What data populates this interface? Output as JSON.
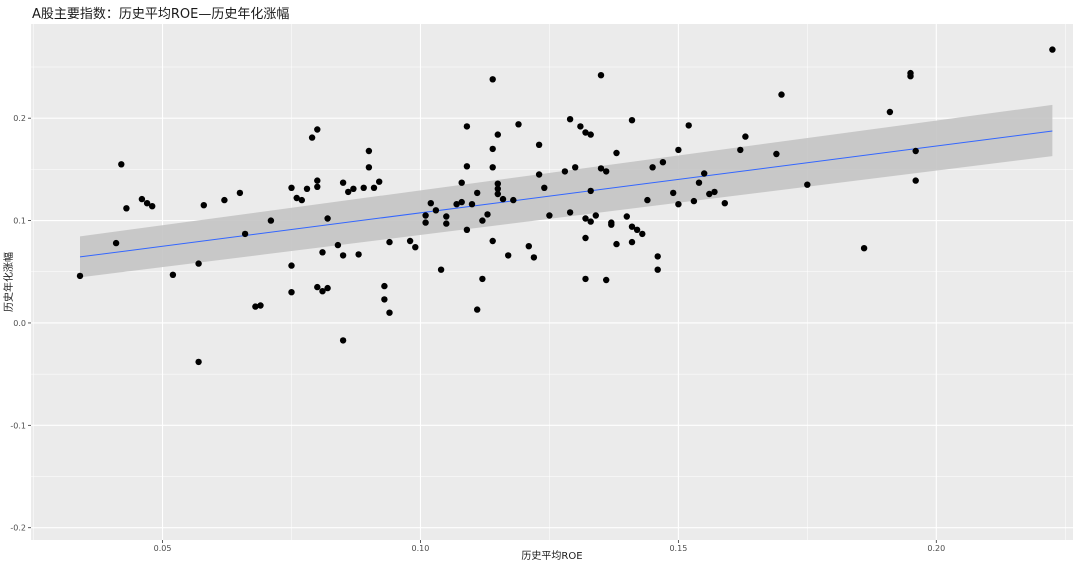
{
  "chart_data": {
    "type": "scatter",
    "title": "A股主要指数：历史平均ROE—历史年化涨幅",
    "xlabel": "历史平均ROE",
    "ylabel": "历史年化涨幅",
    "xlim": [
      0.0245,
      0.2265
    ],
    "ylim": [
      -0.212,
      0.292
    ],
    "x_ticks": [
      0.05,
      0.1,
      0.15,
      0.2
    ],
    "x_tick_labels": [
      "0.05",
      "0.10",
      "0.15",
      "0.20"
    ],
    "y_ticks": [
      -0.2,
      -0.1,
      0.0,
      0.1,
      0.2
    ],
    "y_tick_labels": [
      "-0.2",
      "-0.1",
      "0.0",
      "0.1",
      "0.2"
    ],
    "grid": true,
    "trend_line": {
      "type": "linear",
      "x": [
        0.034,
        0.2225
      ],
      "y": [
        0.0645,
        0.1875
      ],
      "ci_lower": [
        0.0445,
        0.163
      ],
      "ci_upper": [
        0.0845,
        0.213
      ],
      "color": "#3366ff",
      "band_color": "#c4c4c4"
    },
    "colors": {
      "panel": "#ebebeb",
      "grid": "#ffffff",
      "point": "#000000"
    },
    "points": [
      [
        0.034,
        0.046
      ],
      [
        0.041,
        0.078
      ],
      [
        0.042,
        0.155
      ],
      [
        0.043,
        0.112
      ],
      [
        0.046,
        0.121
      ],
      [
        0.047,
        0.117
      ],
      [
        0.048,
        0.114
      ],
      [
        0.052,
        0.047
      ],
      [
        0.057,
        0.058
      ],
      [
        0.057,
        -0.038
      ],
      [
        0.058,
        0.115
      ],
      [
        0.062,
        0.12
      ],
      [
        0.065,
        0.127
      ],
      [
        0.066,
        0.087
      ],
      [
        0.068,
        0.016
      ],
      [
        0.069,
        0.017
      ],
      [
        0.071,
        0.1
      ],
      [
        0.075,
        0.132
      ],
      [
        0.075,
        0.056
      ],
      [
        0.075,
        0.03
      ],
      [
        0.076,
        0.122
      ],
      [
        0.077,
        0.12
      ],
      [
        0.078,
        0.131
      ],
      [
        0.079,
        0.181
      ],
      [
        0.08,
        0.133
      ],
      [
        0.08,
        0.189
      ],
      [
        0.08,
        0.139
      ],
      [
        0.08,
        0.035
      ],
      [
        0.081,
        0.031
      ],
      [
        0.081,
        0.069
      ],
      [
        0.082,
        0.102
      ],
      [
        0.082,
        0.034
      ],
      [
        0.084,
        0.076
      ],
      [
        0.085,
        -0.017
      ],
      [
        0.085,
        0.066
      ],
      [
        0.085,
        0.137
      ],
      [
        0.086,
        0.128
      ],
      [
        0.087,
        0.131
      ],
      [
        0.088,
        0.067
      ],
      [
        0.089,
        0.132
      ],
      [
        0.09,
        0.168
      ],
      [
        0.09,
        0.152
      ],
      [
        0.091,
        0.132
      ],
      [
        0.092,
        0.138
      ],
      [
        0.093,
        0.023
      ],
      [
        0.093,
        0.036
      ],
      [
        0.094,
        0.01
      ],
      [
        0.094,
        0.079
      ],
      [
        0.098,
        0.08
      ],
      [
        0.099,
        0.074
      ],
      [
        0.101,
        0.105
      ],
      [
        0.101,
        0.098
      ],
      [
        0.102,
        0.117
      ],
      [
        0.103,
        0.11
      ],
      [
        0.104,
        0.052
      ],
      [
        0.105,
        0.097
      ],
      [
        0.105,
        0.104
      ],
      [
        0.107,
        0.116
      ],
      [
        0.108,
        0.118
      ],
      [
        0.108,
        0.137
      ],
      [
        0.109,
        0.091
      ],
      [
        0.109,
        0.192
      ],
      [
        0.109,
        0.153
      ],
      [
        0.11,
        0.116
      ],
      [
        0.111,
        0.127
      ],
      [
        0.111,
        0.013
      ],
      [
        0.112,
        0.1
      ],
      [
        0.112,
        0.043
      ],
      [
        0.113,
        0.106
      ],
      [
        0.114,
        0.238
      ],
      [
        0.114,
        0.152
      ],
      [
        0.114,
        0.17
      ],
      [
        0.114,
        0.08
      ],
      [
        0.115,
        0.126
      ],
      [
        0.115,
        0.184
      ],
      [
        0.115,
        0.136
      ],
      [
        0.115,
        0.131
      ],
      [
        0.116,
        0.121
      ],
      [
        0.117,
        0.066
      ],
      [
        0.118,
        0.12
      ],
      [
        0.119,
        0.194
      ],
      [
        0.121,
        0.075
      ],
      [
        0.122,
        0.064
      ],
      [
        0.123,
        0.145
      ],
      [
        0.123,
        0.174
      ],
      [
        0.124,
        0.132
      ],
      [
        0.125,
        0.105
      ],
      [
        0.128,
        0.148
      ],
      [
        0.129,
        0.199
      ],
      [
        0.129,
        0.108
      ],
      [
        0.13,
        0.152
      ],
      [
        0.131,
        0.192
      ],
      [
        0.132,
        0.043
      ],
      [
        0.132,
        0.102
      ],
      [
        0.132,
        0.186
      ],
      [
        0.132,
        0.083
      ],
      [
        0.133,
        0.099
      ],
      [
        0.133,
        0.129
      ],
      [
        0.133,
        0.184
      ],
      [
        0.134,
        0.105
      ],
      [
        0.135,
        0.151
      ],
      [
        0.135,
        0.242
      ],
      [
        0.136,
        0.148
      ],
      [
        0.136,
        0.042
      ],
      [
        0.137,
        0.096
      ],
      [
        0.137,
        0.098
      ],
      [
        0.138,
        0.077
      ],
      [
        0.138,
        0.166
      ],
      [
        0.14,
        0.104
      ],
      [
        0.141,
        0.094
      ],
      [
        0.141,
        0.198
      ],
      [
        0.141,
        0.079
      ],
      [
        0.142,
        0.091
      ],
      [
        0.143,
        0.087
      ],
      [
        0.144,
        0.12
      ],
      [
        0.145,
        0.152
      ],
      [
        0.146,
        0.052
      ],
      [
        0.146,
        0.065
      ],
      [
        0.147,
        0.157
      ],
      [
        0.149,
        0.127
      ],
      [
        0.15,
        0.169
      ],
      [
        0.15,
        0.116
      ],
      [
        0.152,
        0.193
      ],
      [
        0.153,
        0.119
      ],
      [
        0.154,
        0.137
      ],
      [
        0.155,
        0.146
      ],
      [
        0.156,
        0.126
      ],
      [
        0.157,
        0.128
      ],
      [
        0.159,
        0.117
      ],
      [
        0.162,
        0.169
      ],
      [
        0.163,
        0.182
      ],
      [
        0.169,
        0.165
      ],
      [
        0.17,
        0.223
      ],
      [
        0.175,
        0.135
      ],
      [
        0.186,
        0.073
      ],
      [
        0.191,
        0.206
      ],
      [
        0.195,
        0.244
      ],
      [
        0.195,
        0.241
      ],
      [
        0.196,
        0.168
      ],
      [
        0.196,
        0.139
      ],
      [
        0.2225,
        0.267
      ]
    ]
  }
}
